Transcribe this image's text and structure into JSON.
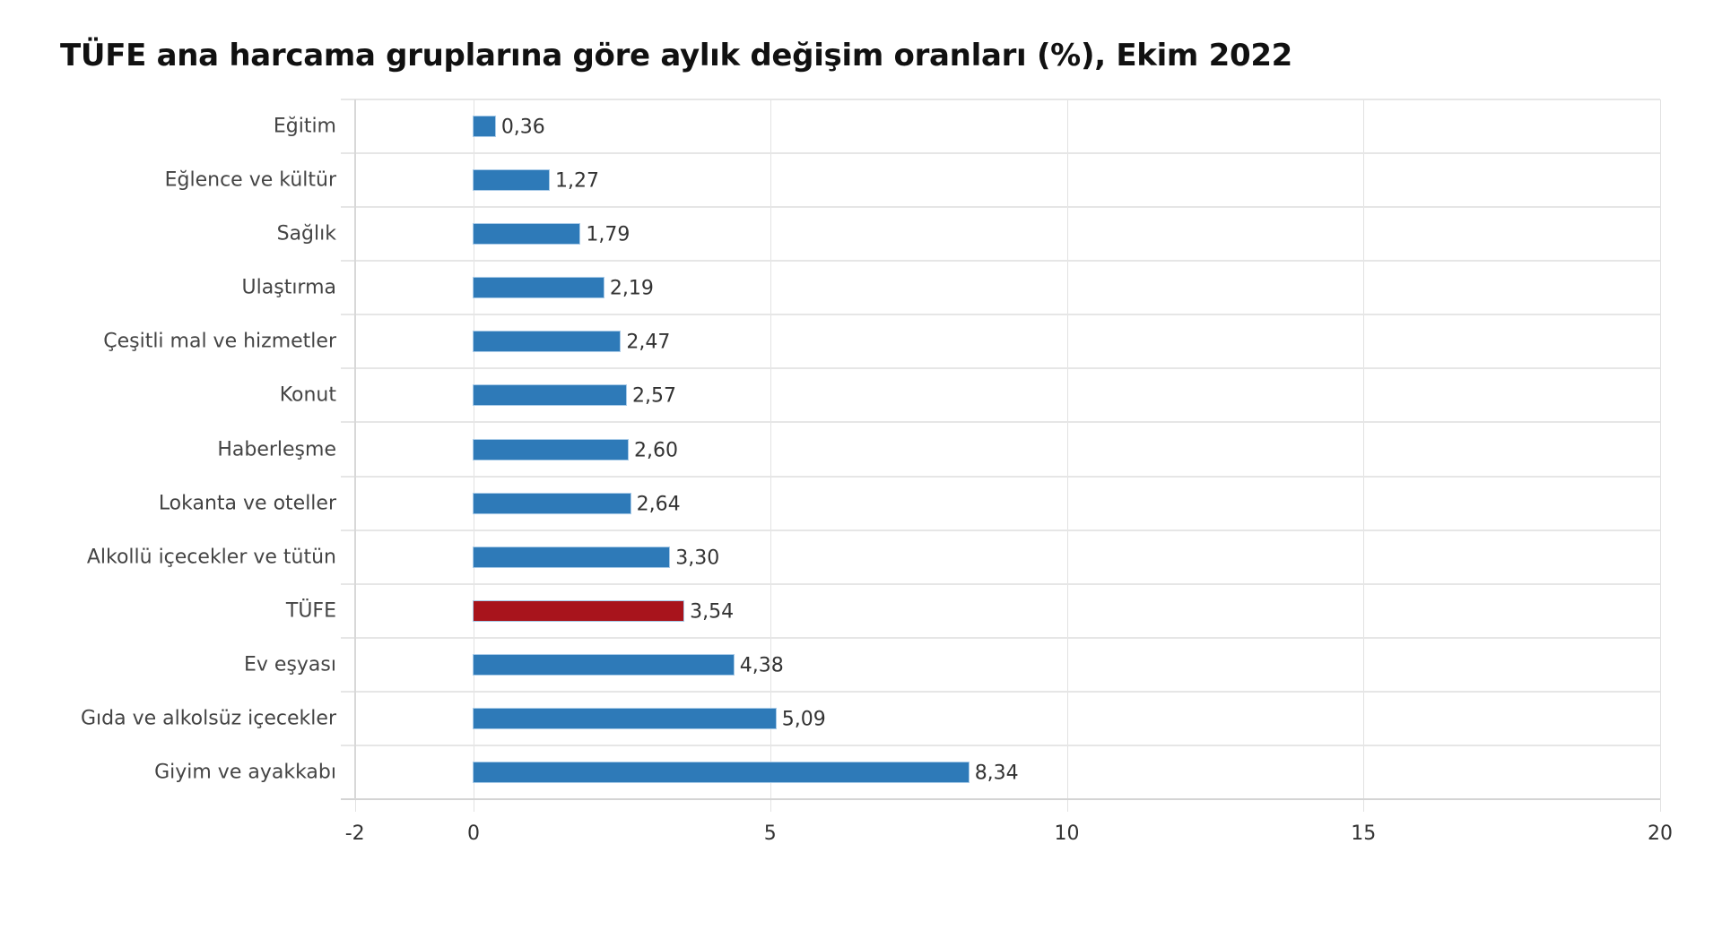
{
  "title": "TÜFE ana harcama gruplarına göre aylık değişim oranları (%), Ekim 2022",
  "colors": {
    "bar": "#2E7AB8",
    "highlight": "#A8141C",
    "grid": "#e6e6e6",
    "text": "#444444"
  },
  "chart_data": {
    "type": "bar",
    "orientation": "horizontal",
    "title": "TÜFE ana harcama gruplarına göre aylık değişim oranları (%), Ekim 2022",
    "xlabel": "",
    "ylabel": "",
    "xlim": [
      -2,
      20
    ],
    "x_ticks": [
      -2,
      0,
      5,
      10,
      15,
      20
    ],
    "x_tick_labels": [
      "-2",
      "0",
      "5",
      "10",
      "15",
      "20"
    ],
    "grid": true,
    "legend": null,
    "categories": [
      "Eğitim",
      "Eğlence ve kültür",
      "Sağlık",
      "Ulaştırma",
      "Çeşitli mal ve hizmetler",
      "Konut",
      "Haberleşme",
      "Lokanta ve oteller",
      "Alkollü içecekler ve tütün",
      "TÜFE",
      "Ev eşyası",
      "Gıda ve alkolsüz içecekler",
      "Giyim ve ayakkabı"
    ],
    "values": [
      0.36,
      1.27,
      1.79,
      2.19,
      2.47,
      2.57,
      2.6,
      2.64,
      3.3,
      3.54,
      4.38,
      5.09,
      8.34
    ],
    "value_labels": [
      "0,36",
      "1,27",
      "1,79",
      "2,19",
      "2,47",
      "2,57",
      "2,60",
      "2,64",
      "3,30",
      "3,54",
      "4,38",
      "5,09",
      "8,34"
    ],
    "highlighted_category": "TÜFE",
    "bar_colors": [
      "#2E7AB8",
      "#2E7AB8",
      "#2E7AB8",
      "#2E7AB8",
      "#2E7AB8",
      "#2E7AB8",
      "#2E7AB8",
      "#2E7AB8",
      "#2E7AB8",
      "#A8141C",
      "#2E7AB8",
      "#2E7AB8",
      "#2E7AB8"
    ]
  }
}
